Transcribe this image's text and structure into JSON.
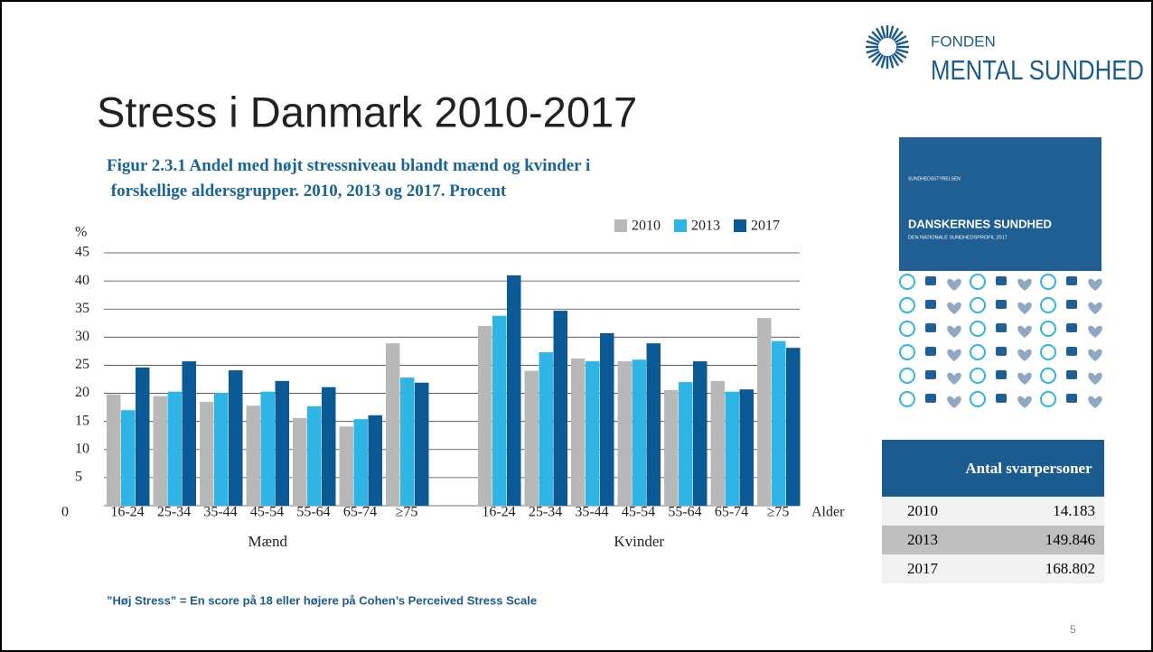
{
  "slide": {
    "title": "Stress i Danmark 2010-2017",
    "logo_top": "FONDEN",
    "logo_bottom": "MENTAL SUNDHED",
    "footnote": "”Høj Stress” = En score på 18  eller højere på Cohen’s Perceived Stress Scale",
    "page_number": "5"
  },
  "cover": {
    "publisher": "SUNDHEDSSTYRELSEN",
    "title": "DANSKERNES SUNDHED",
    "subtitle": "DEN NATIONALE SUNDHEDSPROFIL 2017"
  },
  "table": {
    "header": "Antal svarpersoner",
    "rows": [
      [
        "2010",
        "14.183"
      ],
      [
        "2013",
        "149.846"
      ],
      [
        "2017",
        "168.802"
      ]
    ]
  },
  "chart_data": {
    "type": "bar",
    "title": "Figur 2.3.1 Andel med højt stressniveau blandt mænd og kvinder i forskellige aldersgrupper. 2010, 2013 og 2017. Procent",
    "y_label": "%",
    "x_label": "Alder",
    "group_labels": [
      "Mænd",
      "Kvinder"
    ],
    "categories": [
      "16-24",
      "25-34",
      "35-44",
      "45-54",
      "55-64",
      "65-74",
      "≥75",
      "16-24",
      "25-34",
      "35-44",
      "45-54",
      "55-64",
      "65-74",
      "≥75"
    ],
    "series": [
      {
        "name": "2010",
        "color": "#b8b8b8",
        "values": [
          19.8,
          19.5,
          18.5,
          17.8,
          15.6,
          14.1,
          28.9,
          32.0,
          24.0,
          26.2,
          25.7,
          20.6,
          22.2,
          33.4
        ]
      },
      {
        "name": "2013",
        "color": "#2fb4e6",
        "values": [
          17.0,
          20.3,
          20.1,
          20.3,
          17.7,
          15.4,
          22.8,
          33.8,
          27.3,
          25.7,
          26.0,
          22.0,
          20.3,
          29.3
        ]
      },
      {
        "name": "2017",
        "color": "#0c5a95",
        "values": [
          24.6,
          25.7,
          24.1,
          22.2,
          21.1,
          16.1,
          21.9,
          41.0,
          34.7,
          30.7,
          28.9,
          25.7,
          20.7,
          28.1
        ]
      }
    ],
    "ylim": [
      0,
      45
    ],
    "yticks": [
      0,
      5,
      10,
      15,
      20,
      25,
      30,
      35,
      40,
      45
    ],
    "grid": true,
    "legend": "top-right"
  }
}
